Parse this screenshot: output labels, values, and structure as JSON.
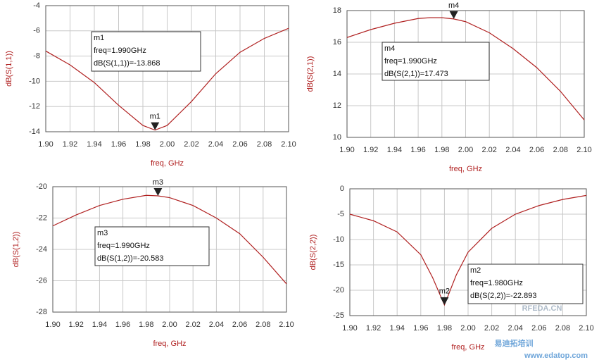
{
  "chart_data": [
    {
      "type": "line",
      "xlabel": "freq, GHz",
      "ylabel": "dB(S(1,1))",
      "color": "#b02020",
      "grid": true,
      "x": [
        1.9,
        1.92,
        1.94,
        1.96,
        1.98,
        1.99,
        2.0,
        2.02,
        2.04,
        2.06,
        2.08,
        2.1
      ],
      "values": [
        -7.6,
        -8.7,
        -10.1,
        -11.9,
        -13.5,
        -13.868,
        -13.5,
        -11.6,
        -9.4,
        -7.7,
        -6.6,
        -5.8
      ],
      "xlim": [
        1.9,
        2.1
      ],
      "ylim": [
        -14,
        -4
      ],
      "xticks": [
        {
          "value": 1.9,
          "label": "1.90"
        },
        {
          "value": 1.92,
          "label": "1.92"
        },
        {
          "value": 1.94,
          "label": "1.94"
        },
        {
          "value": 1.96,
          "label": "1.96"
        },
        {
          "value": 1.98,
          "label": "1.98"
        },
        {
          "value": 2.0,
          "label": "2.00"
        },
        {
          "value": 2.02,
          "label": "2.02"
        },
        {
          "value": 2.04,
          "label": "2.04"
        },
        {
          "value": 2.06,
          "label": "2.06"
        },
        {
          "value": 2.08,
          "label": "2.08"
        },
        {
          "value": 2.1,
          "label": "2.10"
        }
      ],
      "yticks": [
        -14,
        -12,
        -10,
        -8,
        -6,
        -4
      ],
      "markers": [
        {
          "label": "m1",
          "x": 1.99,
          "y": -13.868,
          "text": [
            "m1",
            "freq=1.990GHz",
            "dB(S(1,1))=-13.868"
          ]
        }
      ]
    },
    {
      "type": "line",
      "xlabel": "freq, GHz",
      "ylabel": "dB(S(2,1))",
      "color": "#b02020",
      "grid": true,
      "x": [
        1.9,
        1.92,
        1.94,
        1.96,
        1.97,
        1.98,
        1.99,
        2.0,
        2.02,
        2.04,
        2.06,
        2.08,
        2.1
      ],
      "values": [
        16.3,
        16.8,
        17.2,
        17.5,
        17.55,
        17.55,
        17.473,
        17.3,
        16.6,
        15.6,
        14.4,
        12.9,
        11.1
      ],
      "xlim": [
        1.9,
        2.1
      ],
      "ylim": [
        10,
        18
      ],
      "xticks": [
        {
          "value": 1.9,
          "label": "1.90"
        },
        {
          "value": 1.92,
          "label": "1.92"
        },
        {
          "value": 1.94,
          "label": "1.94"
        },
        {
          "value": 1.96,
          "label": "1.96"
        },
        {
          "value": 1.98,
          "label": "1.98"
        },
        {
          "value": 2.0,
          "label": "2.00"
        },
        {
          "value": 2.02,
          "label": "2.02"
        },
        {
          "value": 2.04,
          "label": "2.04"
        },
        {
          "value": 2.06,
          "label": "2.06"
        },
        {
          "value": 2.08,
          "label": "2.08"
        },
        {
          "value": 2.1,
          "label": "2.10"
        }
      ],
      "yticks": [
        10,
        12,
        14,
        16,
        18
      ],
      "markers": [
        {
          "label": "m4",
          "x": 1.99,
          "y": 17.473,
          "text": [
            "m4",
            "freq=1.990GHz",
            "dB(S(2,1))=17.473"
          ]
        }
      ]
    },
    {
      "type": "line",
      "xlabel": "freq, GHz",
      "ylabel": "dB(S(1,2))",
      "color": "#b02020",
      "grid": true,
      "x": [
        1.9,
        1.92,
        1.94,
        1.96,
        1.98,
        1.99,
        2.0,
        2.02,
        2.04,
        2.06,
        2.08,
        2.1
      ],
      "values": [
        -22.5,
        -21.8,
        -21.2,
        -20.8,
        -20.55,
        -20.583,
        -20.7,
        -21.2,
        -22.0,
        -23.0,
        -24.5,
        -26.2
      ],
      "xlim": [
        1.9,
        2.1
      ],
      "ylim": [
        -28,
        -20
      ],
      "xticks": [
        {
          "value": 1.9,
          "label": "1.90"
        },
        {
          "value": 1.92,
          "label": "1.92"
        },
        {
          "value": 1.94,
          "label": "1.94"
        },
        {
          "value": 1.96,
          "label": "1.96"
        },
        {
          "value": 1.98,
          "label": "1.98"
        },
        {
          "value": 2.0,
          "label": "2.00"
        },
        {
          "value": 2.02,
          "label": "2.02"
        },
        {
          "value": 2.04,
          "label": "2.04"
        },
        {
          "value": 2.06,
          "label": "2.06"
        },
        {
          "value": 2.08,
          "label": "2.08"
        },
        {
          "value": 2.1,
          "label": "2.10"
        }
      ],
      "yticks": [
        -28,
        -26,
        -24,
        -22,
        -20
      ],
      "markers": [
        {
          "label": "m3",
          "x": 1.99,
          "y": -20.583,
          "text": [
            "m3",
            "freq=1.990GHz",
            "dB(S(1,2))=-20.583"
          ]
        }
      ]
    },
    {
      "type": "line",
      "xlabel": "freq, GHz",
      "ylabel": "dB(S(2,2))",
      "color": "#b02020",
      "grid": true,
      "x": [
        1.9,
        1.92,
        1.94,
        1.96,
        1.97,
        1.98,
        1.99,
        2.0,
        2.02,
        2.04,
        2.06,
        2.08,
        2.1
      ],
      "values": [
        -5.0,
        -6.3,
        -8.5,
        -13.0,
        -17.5,
        -22.893,
        -17.0,
        -12.5,
        -7.8,
        -5.0,
        -3.3,
        -2.1,
        -1.3
      ],
      "xlim": [
        1.9,
        2.1
      ],
      "ylim": [
        -25,
        0
      ],
      "xticks": [
        {
          "value": 1.9,
          "label": "1.90"
        },
        {
          "value": 1.92,
          "label": "1.92"
        },
        {
          "value": 1.94,
          "label": "1.94"
        },
        {
          "value": 1.96,
          "label": "1.96"
        },
        {
          "value": 1.98,
          "label": "1.98"
        },
        {
          "value": 2.0,
          "label": "2.00"
        },
        {
          "value": 2.02,
          "label": "2.02"
        },
        {
          "value": 2.04,
          "label": "2.04"
        },
        {
          "value": 2.06,
          "label": "2.06"
        },
        {
          "value": 2.08,
          "label": "2.08"
        },
        {
          "value": 2.1,
          "label": "2.10"
        }
      ],
      "yticks": [
        -25,
        -20,
        -15,
        -10,
        -5,
        0
      ],
      "markers": [
        {
          "label": "m2",
          "x": 1.98,
          "y": -22.893,
          "text": [
            "m2",
            "freq=1.980GHz",
            "dB(S(2,2))=-22.893"
          ]
        }
      ]
    }
  ],
  "watermarks": [
    "RFEDA.CN",
    "易迪拓培训",
    "www.edatop.com"
  ]
}
